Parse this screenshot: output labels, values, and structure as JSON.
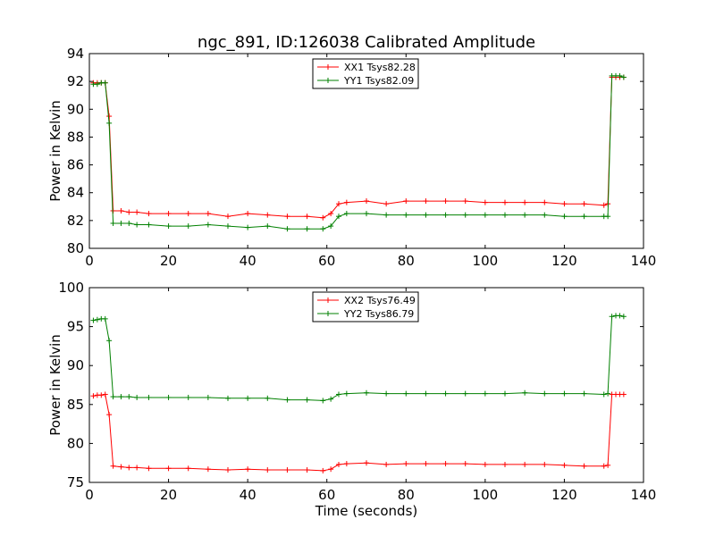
{
  "title": "ngc_891, ID:126038 Calibrated Amplitude",
  "chart_data": [
    {
      "type": "line",
      "title": "ngc_891, ID:126038 Calibrated Amplitude",
      "xlabel": "",
      "ylabel": "Power in Kelvin",
      "xlim": [
        0,
        140
      ],
      "ylim": [
        80,
        94
      ],
      "xticks": [
        0,
        20,
        40,
        60,
        80,
        100,
        120,
        140
      ],
      "yticks": [
        80,
        82,
        84,
        86,
        88,
        90,
        92,
        94
      ],
      "grid": false,
      "legend_position": "top-center",
      "series": [
        {
          "name": "XX1 Tsys82.28",
          "color": "#ff0000",
          "x": [
            1,
            2,
            3,
            4,
            5,
            6,
            8,
            10,
            12,
            15,
            20,
            25,
            30,
            35,
            40,
            45,
            50,
            55,
            59,
            61,
            63,
            65,
            70,
            75,
            80,
            85,
            90,
            95,
            100,
            105,
            110,
            115,
            120,
            125,
            130,
            131,
            132,
            133,
            134,
            135
          ],
          "y": [
            91.9,
            91.9,
            91.9,
            91.9,
            89.5,
            82.7,
            82.7,
            82.6,
            82.6,
            82.5,
            82.5,
            82.5,
            82.5,
            82.3,
            82.5,
            82.4,
            82.3,
            82.3,
            82.2,
            82.5,
            83.2,
            83.3,
            83.4,
            83.2,
            83.4,
            83.4,
            83.4,
            83.4,
            83.3,
            83.3,
            83.3,
            83.3,
            83.2,
            83.2,
            83.1,
            83.2,
            92.3,
            92.3,
            92.3,
            92.3
          ]
        },
        {
          "name": "YY1 Tsys82.09",
          "color": "#008000",
          "x": [
            1,
            2,
            3,
            4,
            5,
            6,
            8,
            10,
            12,
            15,
            20,
            25,
            30,
            35,
            40,
            45,
            50,
            55,
            59,
            61,
            63,
            65,
            70,
            75,
            80,
            85,
            90,
            95,
            100,
            105,
            110,
            115,
            120,
            125,
            130,
            131,
            132,
            133,
            134,
            135
          ],
          "y": [
            91.8,
            91.8,
            91.9,
            91.9,
            89.0,
            81.8,
            81.8,
            81.8,
            81.7,
            81.7,
            81.6,
            81.6,
            81.7,
            81.6,
            81.5,
            81.6,
            81.4,
            81.4,
            81.4,
            81.6,
            82.3,
            82.5,
            82.5,
            82.4,
            82.4,
            82.4,
            82.4,
            82.4,
            82.4,
            82.4,
            82.4,
            82.4,
            82.3,
            82.3,
            82.3,
            82.3,
            92.4,
            92.4,
            92.4,
            92.3
          ]
        }
      ]
    },
    {
      "type": "line",
      "title": "",
      "xlabel": "Time (seconds)",
      "ylabel": "Power in Kelvin",
      "xlim": [
        0,
        140
      ],
      "ylim": [
        75,
        100
      ],
      "xticks": [
        0,
        20,
        40,
        60,
        80,
        100,
        120,
        140
      ],
      "yticks": [
        75,
        80,
        85,
        90,
        95,
        100
      ],
      "grid": false,
      "legend_position": "top-center",
      "series": [
        {
          "name": "XX2 Tsys76.49",
          "color": "#ff0000",
          "x": [
            1,
            2,
            3,
            4,
            5,
            6,
            8,
            10,
            12,
            15,
            20,
            25,
            30,
            35,
            40,
            45,
            50,
            55,
            59,
            61,
            63,
            65,
            70,
            75,
            80,
            85,
            90,
            95,
            100,
            105,
            110,
            115,
            120,
            125,
            130,
            131,
            132,
            133,
            134,
            135
          ],
          "y": [
            86.1,
            86.2,
            86.2,
            86.3,
            83.7,
            77.1,
            77.0,
            76.9,
            76.9,
            76.8,
            76.8,
            76.8,
            76.7,
            76.6,
            76.7,
            76.6,
            76.6,
            76.6,
            76.5,
            76.7,
            77.3,
            77.4,
            77.5,
            77.3,
            77.4,
            77.4,
            77.4,
            77.4,
            77.3,
            77.3,
            77.3,
            77.3,
            77.2,
            77.1,
            77.1,
            77.2,
            86.3,
            86.3,
            86.3,
            86.3
          ]
        },
        {
          "name": "YY2 Tsys86.79",
          "color": "#008000",
          "x": [
            1,
            2,
            3,
            4,
            5,
            6,
            8,
            10,
            12,
            15,
            20,
            25,
            30,
            35,
            40,
            45,
            50,
            55,
            59,
            61,
            63,
            65,
            70,
            75,
            80,
            85,
            90,
            95,
            100,
            105,
            110,
            115,
            120,
            125,
            130,
            131,
            132,
            133,
            134,
            135
          ],
          "y": [
            95.8,
            95.9,
            96.0,
            96.0,
            93.2,
            86.0,
            86.0,
            86.0,
            85.9,
            85.9,
            85.9,
            85.9,
            85.9,
            85.8,
            85.8,
            85.8,
            85.6,
            85.6,
            85.5,
            85.7,
            86.3,
            86.4,
            86.5,
            86.4,
            86.4,
            86.4,
            86.4,
            86.4,
            86.4,
            86.4,
            86.5,
            86.4,
            86.4,
            86.4,
            86.3,
            86.4,
            96.3,
            96.4,
            96.4,
            96.3
          ]
        }
      ]
    }
  ]
}
